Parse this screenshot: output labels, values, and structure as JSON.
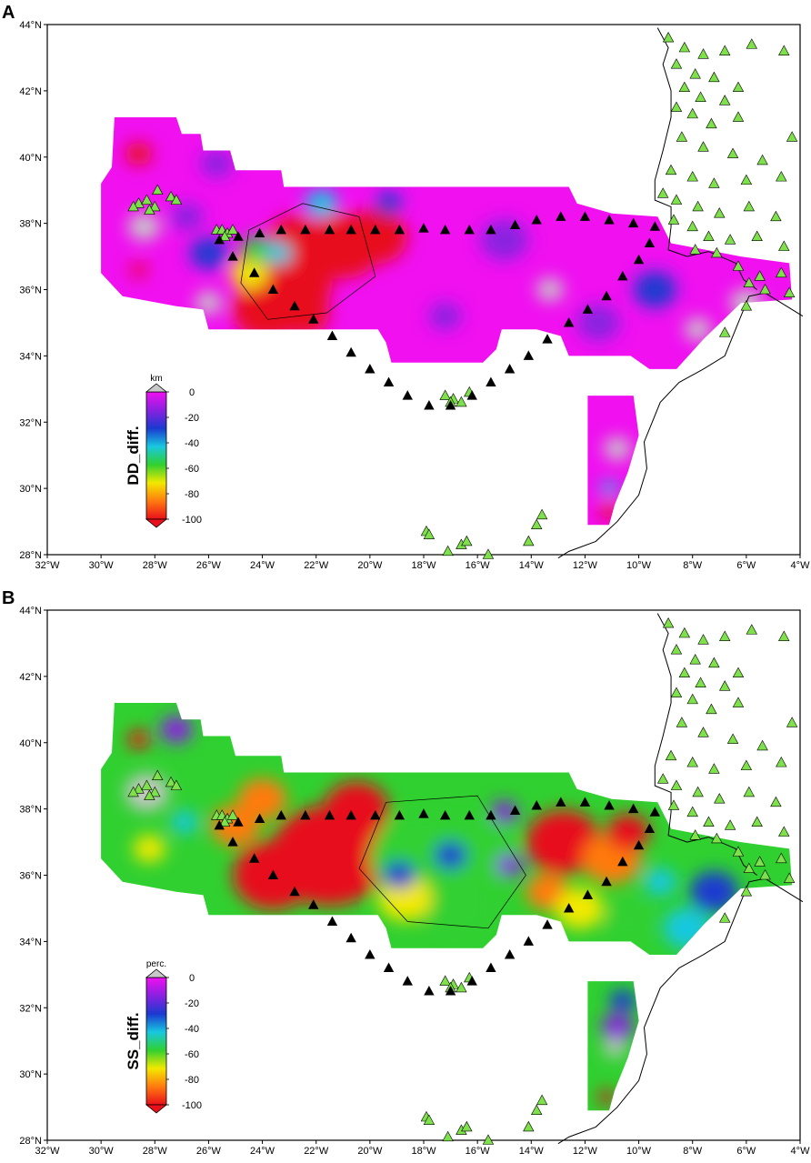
{
  "panels": [
    {
      "label": "A",
      "colorbar_title": "DD_diff.",
      "colorbar_unit": "km",
      "colorbar_ticks": [
        "0",
        "-20",
        "-40",
        "-60",
        "-80",
        "-100"
      ]
    },
    {
      "label": "B",
      "colorbar_title": "SS_diff.",
      "colorbar_unit": "perc.",
      "colorbar_ticks": [
        "0",
        "-20",
        "-40",
        "-60",
        "-80",
        "-100"
      ]
    }
  ],
  "lon_ticks": [
    "32°W",
    "30°W",
    "28°W",
    "26°W",
    "24°W",
    "22°W",
    "20°W",
    "18°W",
    "16°W",
    "14°W",
    "12°W",
    "10°W",
    "8°W",
    "6°W",
    "4°W"
  ],
  "lat_ticks": [
    "28°N",
    "30°N",
    "32°N",
    "34°N",
    "36°N",
    "38°N",
    "40°N",
    "42°N",
    "44°N"
  ],
  "map_extent": {
    "lon": [
      -32,
      -4
    ],
    "lat": [
      28,
      44
    ]
  },
  "colorscale": [
    "#e8101a",
    "#ff7a10",
    "#f2e900",
    "#30d030",
    "#18c8e0",
    "#1a3ad0",
    "#8a20e0",
    "#f010f0",
    "#c8c8c8"
  ],
  "colors": {
    "obs_station": "#7ee04a",
    "synthetic_station": "#000000",
    "masked": "#c8c8c8"
  }
}
